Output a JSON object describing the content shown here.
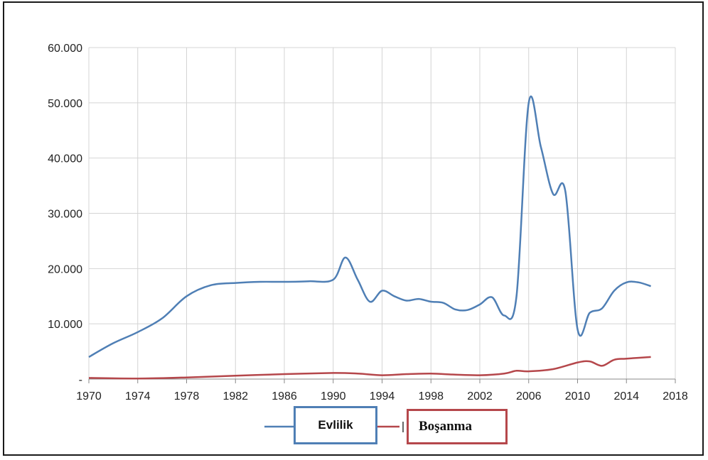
{
  "chart_data": {
    "type": "line",
    "title": "",
    "xlabel": "",
    "ylabel": "",
    "xlim": [
      1970,
      2018
    ],
    "ylim": [
      0,
      60000
    ],
    "grid": true,
    "legend_position": "bottom",
    "x_ticks": [
      1970,
      1974,
      1978,
      1982,
      1986,
      1990,
      1994,
      1998,
      2002,
      2006,
      2010,
      2014,
      2018
    ],
    "x_tick_labels": [
      "1970",
      "1974",
      "1978",
      "1982",
      "1986",
      "1990",
      "1994",
      "1998",
      "2002",
      "2006",
      "2010",
      "2014",
      "2018"
    ],
    "y_ticks": [
      0,
      10000,
      20000,
      30000,
      40000,
      50000,
      60000
    ],
    "y_tick_labels": [
      "-",
      "10.000",
      "20.000",
      "30.000",
      "40.000",
      "50.000",
      "60.000"
    ],
    "series": [
      {
        "name": "Evlilik",
        "color": "#4f7fb5",
        "x": [
          1970,
          1972,
          1974,
          1976,
          1978,
          1980,
          1982,
          1984,
          1986,
          1988,
          1990,
          1991,
          1992,
          1993,
          1994,
          1995,
          1996,
          1997,
          1998,
          1999,
          2000,
          2001,
          2002,
          2003,
          2004,
          2005,
          2006,
          2007,
          2008,
          2009,
          2010,
          2011,
          2012,
          2013,
          2014,
          2015,
          2016
        ],
        "values": [
          4000,
          6500,
          8500,
          11000,
          15000,
          17000,
          17400,
          17600,
          17600,
          17700,
          18000,
          22000,
          18000,
          14000,
          16000,
          15000,
          14200,
          14500,
          14000,
          13800,
          12600,
          12500,
          13500,
          14800,
          11500,
          15000,
          50000,
          42000,
          33500,
          34000,
          9000,
          12000,
          12800,
          16000,
          17500,
          17500,
          16800
        ]
      },
      {
        "name": "Boşanma",
        "color": "#b5474b",
        "x": [
          1970,
          1974,
          1978,
          1982,
          1986,
          1990,
          1992,
          1994,
          1996,
          1998,
          2000,
          2002,
          2004,
          2005,
          2006,
          2008,
          2010,
          2011,
          2012,
          2013,
          2014,
          2016
        ],
        "values": [
          200,
          100,
          300,
          600,
          900,
          1100,
          1000,
          700,
          900,
          1000,
          800,
          700,
          1000,
          1500,
          1400,
          1800,
          3000,
          3200,
          2400,
          3500,
          3700,
          4000
        ]
      }
    ]
  },
  "legend": {
    "evlilik_label": "Evlilik",
    "bosanma_label": "Boşanma"
  }
}
